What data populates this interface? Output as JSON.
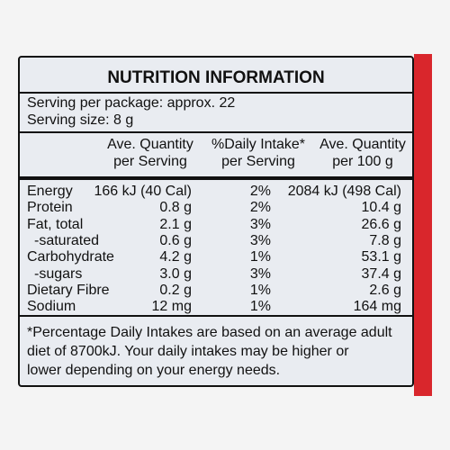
{
  "header": {
    "title": "NUTRITION INFORMATION"
  },
  "serving": {
    "per_package": "Serving per package: approx. 22",
    "size": "Serving size: 8 g"
  },
  "table": {
    "columns": [
      [
        "Ave. Quantity",
        "per Serving"
      ],
      [
        "%Daily Intake*",
        "per Serving"
      ],
      [
        "Ave. Quantity",
        "per 100 g"
      ]
    ],
    "rows": [
      [
        "Energy",
        "166 kJ (40 Cal)",
        "2%",
        "2084 kJ (498 Cal)"
      ],
      [
        "Protein",
        "0.8 g",
        "2%",
        "10.4 g"
      ],
      [
        "Fat, total",
        "2.1 g",
        "3%",
        "26.6 g"
      ],
      [
        "-saturated",
        "0.6 g",
        "3%",
        "7.8 g"
      ],
      [
        "Carbohydrate",
        "4.2 g",
        "1%",
        "53.1 g"
      ],
      [
        "-sugars",
        "3.0 g",
        "3%",
        "37.4 g"
      ],
      [
        "Dietary Fibre",
        "0.2 g",
        "1%",
        "2.6 g"
      ],
      [
        "Sodium",
        "12 mg",
        "1%",
        "164 mg"
      ]
    ]
  },
  "footnote": [
    "*Percentage Daily Intakes are based on an average adult",
    "diet of 8700kJ. Your daily intakes may be higher or",
    "lower depending on your energy needs."
  ]
}
